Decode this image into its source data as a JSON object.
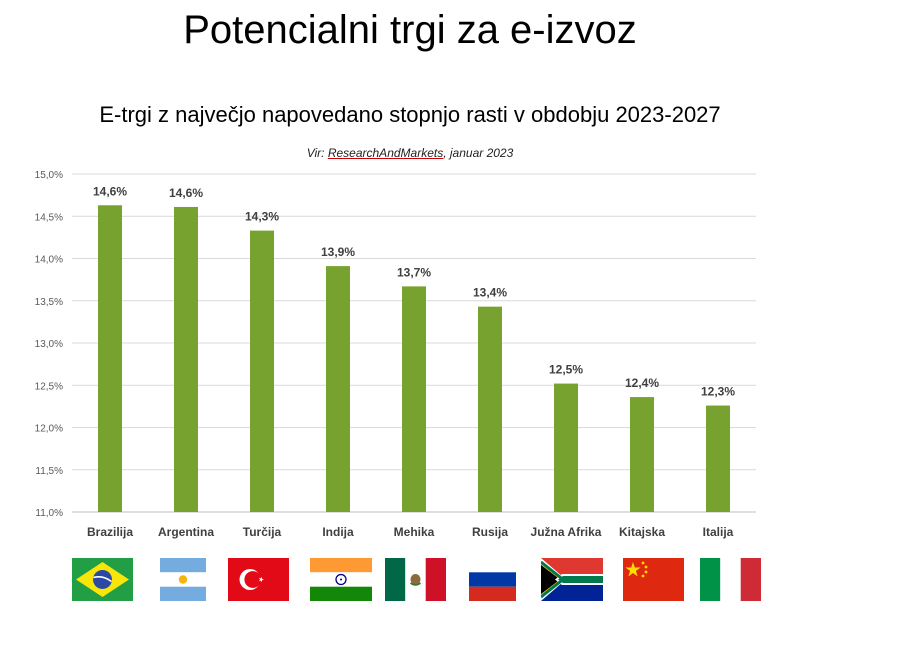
{
  "page_title": "Potencialni trgi za e-izvoz",
  "source": {
    "prefix": "Vir: ",
    "name": "ResearchAndMarkets",
    "suffix": ", januar 2023"
  },
  "colors": {
    "bar": "#78A22F",
    "grid": "#d9d9d9",
    "tick": "#595959",
    "label": "#404040"
  },
  "flags": [
    "brazil-flag-icon",
    "argentina-flag-icon",
    "turkey-flag-icon",
    "india-flag-icon",
    "mexico-flag-icon",
    "russia-flag-icon",
    "south-africa-flag-icon",
    "china-flag-icon",
    "italy-flag-icon"
  ],
  "chart_data": {
    "type": "bar",
    "title": "E-trgi z največjo napovedano stopnjo rasti v obdobju 2023-2027",
    "xlabel": "",
    "ylabel": "",
    "categories": [
      "Brazilija",
      "Argentina",
      "Turčija",
      "Indija",
      "Mehika",
      "Rusija",
      "Južna Afrika",
      "Kitajska",
      "Italija"
    ],
    "values": [
      14.63,
      14.61,
      14.33,
      13.91,
      13.67,
      13.43,
      12.52,
      12.36,
      12.26
    ],
    "data_labels": [
      "14,6%",
      "14,6%",
      "14,3%",
      "13,9%",
      "13,7%",
      "13,4%",
      "12,5%",
      "12,4%",
      "12,3%"
    ],
    "ylim": [
      11.0,
      15.0
    ],
    "yticks": [
      11.0,
      11.5,
      12.0,
      12.5,
      13.0,
      13.5,
      14.0,
      14.5,
      15.0
    ],
    "ytick_labels": [
      "11,0%",
      "11,5%",
      "12,0%",
      "12,5%",
      "13,0%",
      "13,5%",
      "14,0%",
      "14,5%",
      "15,0%"
    ],
    "grid": true,
    "legend": "none"
  }
}
